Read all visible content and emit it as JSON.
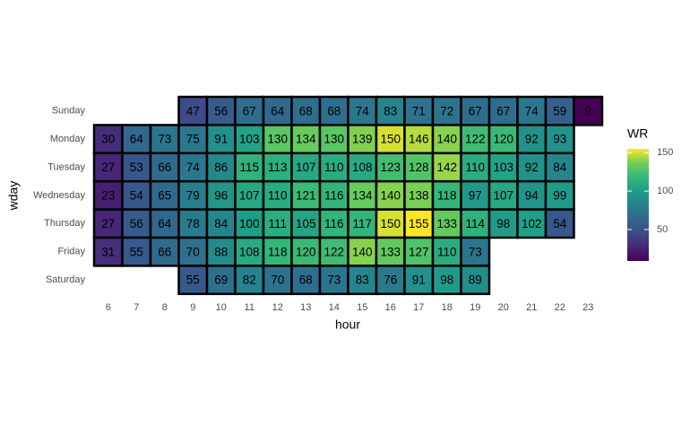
{
  "chart_data": {
    "type": "heatmap",
    "x_label": "hour",
    "y_label": "wday",
    "legend_title": "WR",
    "x": [
      6,
      7,
      8,
      9,
      10,
      11,
      12,
      13,
      14,
      15,
      16,
      17,
      18,
      19,
      20,
      21,
      22,
      23
    ],
    "xlim": [
      5.5,
      23.5
    ],
    "y": [
      "Sunday",
      "Monday",
      "Tuesday",
      "Wednesday",
      "Thursday",
      "Friday",
      "Saturday"
    ],
    "values": [
      [
        null,
        null,
        null,
        47,
        56,
        67,
        64,
        68,
        68,
        74,
        83,
        71,
        72,
        67,
        67,
        74,
        59,
        9
      ],
      [
        30,
        64,
        73,
        75,
        91,
        103,
        130,
        134,
        130,
        139,
        150,
        146,
        140,
        122,
        120,
        92,
        93,
        null
      ],
      [
        27,
        53,
        66,
        74,
        86,
        115,
        113,
        107,
        110,
        108,
        123,
        128,
        142,
        110,
        103,
        92,
        84,
        null
      ],
      [
        23,
        54,
        65,
        79,
        96,
        107,
        110,
        121,
        116,
        134,
        140,
        138,
        118,
        97,
        107,
        94,
        99,
        null
      ],
      [
        27,
        56,
        64,
        78,
        84,
        100,
        111,
        105,
        116,
        117,
        150,
        155,
        133,
        114,
        98,
        102,
        54,
        null
      ],
      [
        31,
        55,
        66,
        70,
        88,
        108,
        118,
        120,
        122,
        140,
        133,
        127,
        110,
        73,
        null,
        null,
        null,
        null
      ],
      [
        null,
        null,
        null,
        55,
        69,
        82,
        70,
        68,
        73,
        83,
        76,
        91,
        98,
        89,
        null,
        null,
        null,
        null
      ]
    ],
    "colormap": "viridis",
    "zlim": [
      9,
      155
    ],
    "zticks": [
      50,
      100,
      150
    ]
  }
}
